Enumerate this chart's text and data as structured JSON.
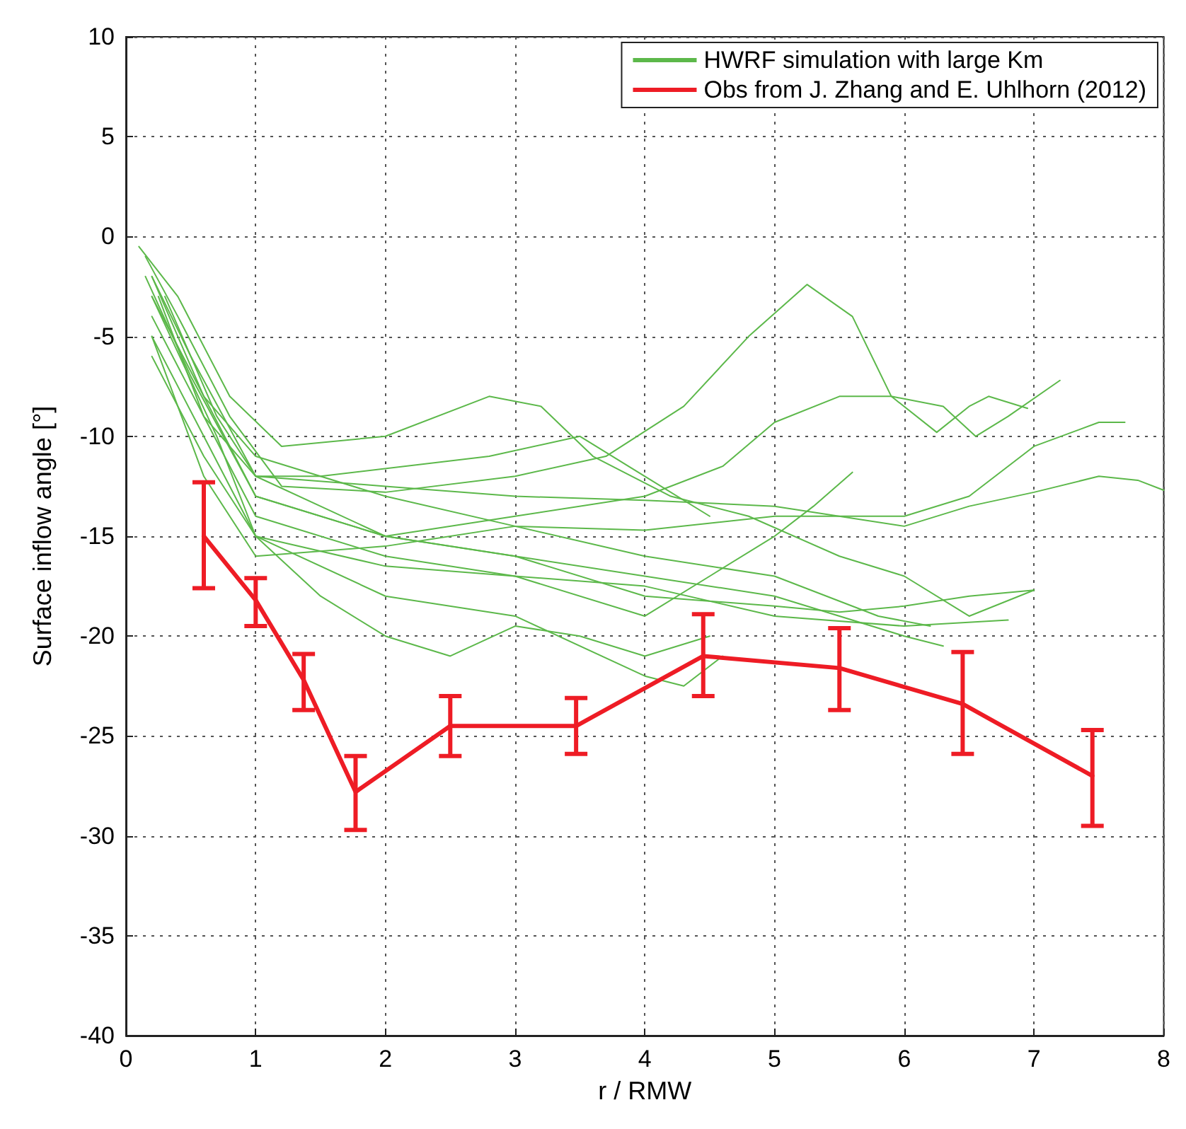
{
  "chart_data": {
    "type": "line",
    "xlabel": "r / RMW",
    "ylabel": "Surface inflow angle [°]",
    "xlim": [
      0,
      8
    ],
    "xticks": [
      0,
      1,
      2,
      3,
      4,
      5,
      6,
      7,
      8
    ],
    "ylim": [
      -40,
      10
    ],
    "yticks": [
      -40,
      -35,
      -30,
      -25,
      -20,
      -15,
      -10,
      -5,
      0,
      5,
      10
    ],
    "grid": true,
    "legend": "top right",
    "marker": "none",
    "series": [
      {
        "name": "HWRF simulation with large Km",
        "color": "#5cb84a",
        "x": [
          0.15,
          0.4,
          0.8,
          1.2,
          2,
          3,
          3.7,
          4.3,
          4.8,
          5.25,
          5.6,
          5.9,
          6.25,
          6.5,
          6.65,
          6.95
        ],
        "values": [
          -1,
          -4,
          -9,
          -12.5,
          -12.8,
          -12,
          -11,
          -8.5,
          -5,
          -2.4,
          -4,
          -8,
          -9.8,
          -8.5,
          -8,
          -8.6
        ]
      },
      {
        "color": "#5cb84a",
        "x": [
          0.2,
          0.5,
          1,
          2,
          3,
          4,
          4.6,
          5,
          5.5,
          5.9,
          6.3,
          6.55,
          6.8,
          7.2
        ],
        "values": [
          -2,
          -6,
          -12,
          -15,
          -14,
          -13,
          -11.5,
          -9.3,
          -8,
          -8,
          -8.5,
          -10,
          -9,
          -7.2
        ]
      },
      {
        "color": "#5cb84a",
        "x": [
          0.2,
          0.6,
          1,
          2,
          3,
          4,
          5,
          6,
          6.5,
          7,
          7.5,
          7.7
        ],
        "values": [
          -3,
          -8,
          -11,
          -13,
          -14.5,
          -14.7,
          -14,
          -14,
          -13,
          -10.5,
          -9.3,
          -9.3
        ]
      },
      {
        "color": "#5cb84a",
        "x": [
          0.2,
          0.6,
          1,
          2,
          3,
          4,
          5,
          6,
          6.5,
          7,
          7.5,
          7.8,
          8
        ],
        "values": [
          -4,
          -9,
          -12,
          -12.5,
          -13,
          -13.2,
          -13.5,
          -14.5,
          -13.5,
          -12.8,
          -12,
          -12.2,
          -12.7
        ]
      },
      {
        "color": "#5cb84a",
        "x": [
          0.25,
          0.6,
          1,
          2,
          3,
          4,
          4.5,
          5,
          5.3,
          5.6
        ],
        "values": [
          -3,
          -9,
          -14,
          -16,
          -17,
          -19,
          -17,
          -15,
          -13.5,
          -11.8
        ]
      },
      {
        "color": "#5cb84a",
        "x": [
          0.2,
          0.6,
          1,
          2,
          3,
          4,
          5,
          5.5,
          6,
          6.5,
          7
        ],
        "values": [
          -2,
          -8,
          -13,
          -15,
          -16,
          -18,
          -18.5,
          -18.8,
          -18.5,
          -18,
          -17.7
        ]
      },
      {
        "color": "#5cb84a",
        "x": [
          0.2,
          0.6,
          1,
          2,
          3,
          4,
          5,
          6,
          6.8
        ],
        "values": [
          -5,
          -10,
          -15,
          -16.5,
          -17,
          -17.5,
          -19,
          -19.5,
          -19.2
        ]
      },
      {
        "color": "#5cb84a",
        "x": [
          0.2,
          0.6,
          1,
          2,
          3,
          4,
          4.3,
          4.6
        ],
        "values": [
          -6,
          -11,
          -15,
          -18,
          -19,
          -22,
          -22.5,
          -21
        ]
      },
      {
        "color": "#5cb84a",
        "x": [
          0.15,
          0.5,
          1,
          2,
          3,
          4,
          5,
          6,
          6.3
        ],
        "values": [
          -2,
          -7,
          -13,
          -15,
          -16,
          -17,
          -18,
          -20,
          -20.5
        ]
      },
      {
        "color": "#5cb84a",
        "x": [
          0.3,
          0.7,
          1,
          1.5,
          2.8,
          3.5,
          4,
          4.5
        ],
        "values": [
          -3,
          -9,
          -12,
          -12,
          -11,
          -10,
          -12,
          -14
        ]
      },
      {
        "color": "#5cb84a",
        "x": [
          0.1,
          0.4,
          0.8,
          1.2,
          2,
          2.8,
          3.2,
          3.6,
          4.2,
          4.8,
          5.5,
          6,
          6.5,
          7
        ],
        "values": [
          -0.5,
          -3,
          -8,
          -10.5,
          -10,
          -8,
          -8.5,
          -11,
          -13,
          -14,
          -16,
          -17,
          -19,
          -17.7
        ]
      },
      {
        "color": "#5cb84a",
        "x": [
          0.2,
          0.7,
          1,
          1.5,
          2,
          2.5,
          3,
          3.5,
          4,
          4.5
        ],
        "values": [
          -3,
          -10,
          -15,
          -18,
          -20,
          -21,
          -19.5,
          -20,
          -21,
          -20
        ]
      },
      {
        "color": "#5cb84a",
        "x": [
          0.2,
          0.6,
          1,
          2,
          3,
          4,
          5,
          5.8,
          6.2
        ],
        "values": [
          -5,
          -12,
          -16,
          -15.5,
          -14.5,
          -16,
          -17,
          -19,
          -19.5
        ]
      },
      {
        "name": "Obs from J. Zhang and E. Uhlhorn (2012)",
        "color": "#ee1c25",
        "x": [
          0.6,
          1.0,
          1.37,
          1.77,
          2.5,
          3.47,
          4.45,
          5.5,
          6.45,
          7.45
        ],
        "values": [
          -15,
          -18.2,
          -22.2,
          -27.8,
          -24.5,
          -24.5,
          -21,
          -21.6,
          -23.4,
          -27
        ],
        "errors": [
          [
            -17.6,
            -12.3
          ],
          [
            -19.5,
            -17.1
          ],
          [
            -23.7,
            -20.9
          ],
          [
            -29.7,
            -26
          ],
          [
            -26,
            -23
          ],
          [
            -25.9,
            -23.1
          ],
          [
            -23,
            -18.9
          ],
          [
            -23.7,
            -19.6
          ],
          [
            -25.9,
            -20.8
          ],
          [
            -29.5,
            -24.7
          ]
        ]
      }
    ]
  }
}
